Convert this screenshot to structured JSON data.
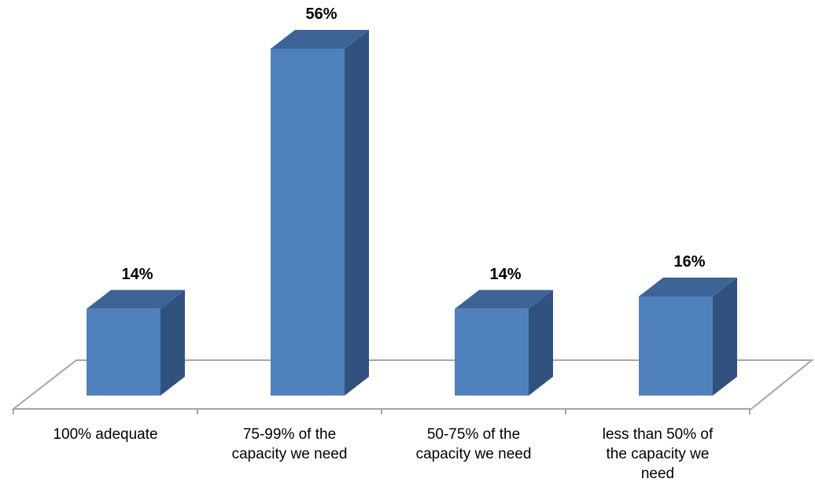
{
  "chart_data": {
    "type": "bar",
    "categories": [
      [
        "100% adequate"
      ],
      [
        "75-99% of the",
        "capacity we need"
      ],
      [
        "50-75% of the",
        "capacity we need"
      ],
      [
        "less than 50% of",
        "the capacity we",
        "need"
      ]
    ],
    "values": [
      14,
      56,
      14,
      16
    ],
    "data_labels": [
      "14%",
      "56%",
      "14%",
      "16%"
    ],
    "title": "",
    "xlabel": "",
    "ylabel": "",
    "ylim": [
      0,
      60
    ],
    "grid": false,
    "legend": "none",
    "colors": {
      "bar_front": "#4f81bd",
      "bar_side": "#31527f",
      "bar_top": "#3e6496",
      "floor": "#a6a6a6"
    }
  }
}
